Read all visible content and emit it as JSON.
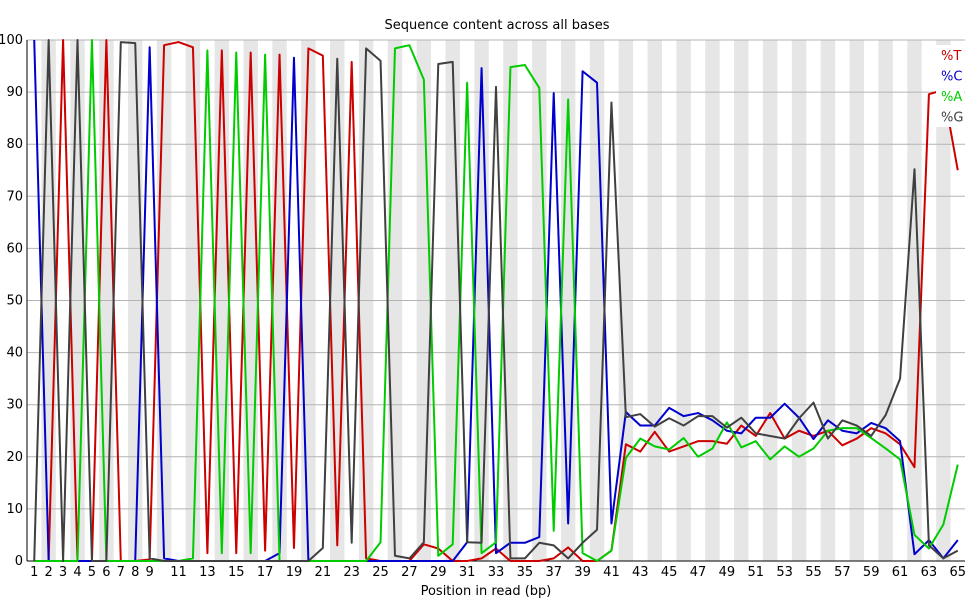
{
  "chart_data": {
    "type": "line",
    "title": "Sequence content across all bases",
    "xlabel": "Position in read (bp)",
    "ylabel": "",
    "ylim": [
      0,
      100
    ],
    "yticks": [
      0,
      10,
      20,
      30,
      40,
      50,
      60,
      70,
      80,
      90,
      100
    ],
    "x": [
      1,
      2,
      3,
      4,
      5,
      6,
      7,
      8,
      9,
      10,
      11,
      12,
      13,
      14,
      15,
      16,
      17,
      18,
      19,
      20,
      21,
      22,
      23,
      24,
      25,
      26,
      27,
      28,
      29,
      30,
      31,
      32,
      33,
      34,
      35,
      36,
      37,
      38,
      39,
      40,
      41,
      42,
      43,
      44,
      45,
      46,
      47,
      48,
      49,
      50,
      51,
      52,
      53,
      54,
      55,
      56,
      57,
      58,
      59,
      60,
      61,
      62,
      63,
      64,
      65
    ],
    "xtick_labels": [
      "1",
      "2",
      "3",
      "4",
      "5",
      "6",
      "7",
      "8",
      "9",
      "11",
      "13",
      "15",
      "17",
      "19",
      "21",
      "23",
      "25",
      "27",
      "29",
      "31",
      "33",
      "35",
      "37",
      "39",
      "41",
      "43",
      "45",
      "47",
      "49",
      "51",
      "53",
      "55",
      "57",
      "59",
      "61",
      "63",
      "65"
    ],
    "grid": true,
    "legend_position": "top-right",
    "series": [
      {
        "name": "%T",
        "color": "#cc0000",
        "values": [
          0,
          0,
          100,
          0,
          0,
          100,
          0,
          0,
          0.3,
          99,
          99.6,
          98.6,
          1.5,
          98,
          1.5,
          97.6,
          2,
          97.2,
          2.5,
          98.4,
          97,
          3,
          95.8,
          0.5,
          0,
          0,
          0,
          3.2,
          2.4,
          0,
          0,
          0.5,
          2.4,
          0,
          0,
          0,
          0.5,
          2.6,
          0,
          0,
          2,
          22.4,
          21,
          24.8,
          21,
          22,
          23,
          23,
          22.5,
          26,
          24,
          28.4,
          23.5,
          25,
          24,
          25,
          22.2,
          23.5,
          25.5,
          24.5,
          22.4,
          18,
          89.6,
          90.4,
          75
        ]
      },
      {
        "name": "%C",
        "color": "#0000cc",
        "values": [
          100,
          0,
          0,
          0,
          0,
          0,
          0,
          0,
          98.6,
          0.5,
          0,
          0,
          0,
          0,
          0,
          0,
          0,
          1.5,
          96.6,
          0,
          0,
          0,
          0,
          0,
          0,
          0,
          0,
          0,
          0,
          0,
          3.6,
          94.6,
          1.5,
          3.5,
          3.5,
          4.6,
          89.8,
          7.2,
          94,
          91.8,
          7.2,
          28.6,
          26,
          26,
          29.4,
          27.8,
          28.4,
          27,
          25,
          24.5,
          27.5,
          27.5,
          30.2,
          27.5,
          23.4,
          27,
          25,
          24.5,
          26.5,
          25.5,
          23,
          1.3,
          4,
          0.5,
          4
        ]
      },
      {
        "name": "%A",
        "color": "#00cc00",
        "values": [
          0,
          0,
          0,
          0,
          100,
          0,
          0,
          0,
          0,
          0,
          0,
          0.5,
          98,
          1.5,
          97.6,
          1.5,
          97.2,
          0,
          0,
          0,
          0,
          0,
          0,
          0,
          3.6,
          98.4,
          99,
          92.4,
          1,
          3.2,
          91.8,
          1.5,
          3.6,
          94.8,
          95.2,
          90.8,
          5.8,
          88.6,
          1.5,
          0,
          2,
          19.8,
          23.5,
          22,
          21.4,
          23.6,
          20,
          21.6,
          26.6,
          21.8,
          23,
          19.5,
          22,
          20,
          21.6,
          25,
          25.5,
          25.5,
          23.6,
          21.6,
          19.5,
          5,
          2.4,
          7,
          18.5
        ]
      },
      {
        "name": "%G",
        "color": "#404040",
        "values": [
          0,
          100,
          0,
          100,
          0,
          0,
          99.6,
          99.4,
          0.5,
          0,
          0,
          0,
          0,
          0,
          0,
          0,
          0,
          0,
          0,
          0,
          2.5,
          96.4,
          3.5,
          98.4,
          96,
          1,
          0.5,
          3.6,
          95.4,
          95.8,
          3.6,
          3.5,
          91,
          0.5,
          0.5,
          3.5,
          3,
          0.5,
          3.5,
          6,
          88,
          27.6,
          28.2,
          25.8,
          27.4,
          26,
          27.8,
          27.8,
          25.6,
          27.5,
          24.5,
          24,
          23.5,
          27.4,
          30.4,
          23.5,
          27,
          26,
          24,
          28,
          35,
          75.2,
          3,
          0.5,
          2
        ]
      }
    ]
  }
}
